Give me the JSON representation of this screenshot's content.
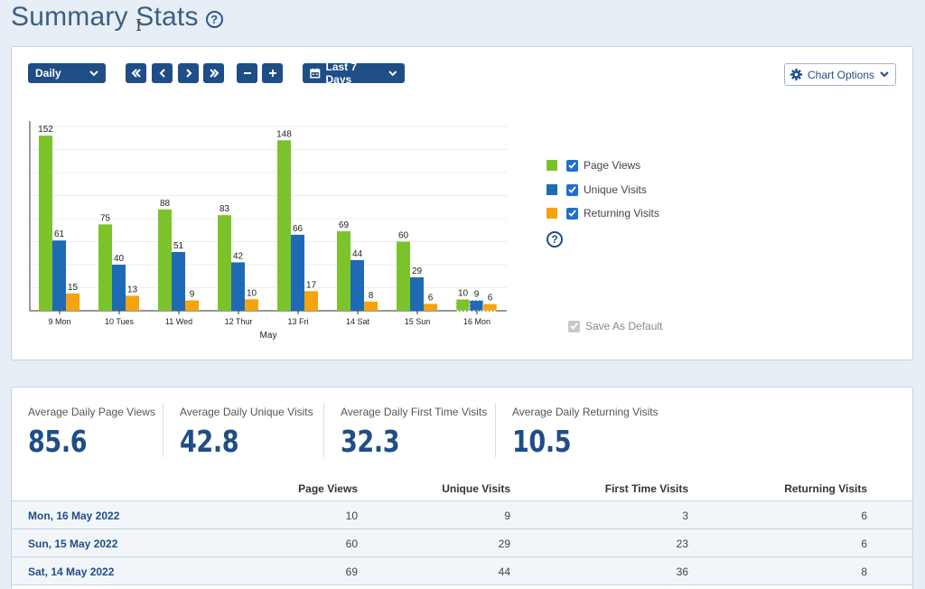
{
  "page": {
    "title": "Summary Stats",
    "help": "?"
  },
  "toolbar": {
    "period": "Daily",
    "date_range": "Last 7 Days",
    "chart_options": "Chart Options"
  },
  "legend": {
    "items": [
      {
        "label": "Page Views",
        "color": "#7cc32b",
        "checked": true
      },
      {
        "label": "Unique Visits",
        "color": "#1e6ab5",
        "checked": true
      },
      {
        "label": "Returning Visits",
        "color": "#f5a30e",
        "checked": true
      }
    ],
    "help": "?",
    "save_default": "Save As Default"
  },
  "chart_data": {
    "type": "bar",
    "xlabel": "May",
    "ylabel": "",
    "ylim": [
      0,
      160
    ],
    "grid": true,
    "categories": [
      "9 Mon",
      "10 Tues",
      "11 Wed",
      "12 Thur",
      "13 Fri",
      "14 Sat",
      "15 Sun",
      "16 Mon"
    ],
    "series": [
      {
        "name": "Page Views",
        "color": "#7cc32b",
        "values": [
          152,
          75,
          88,
          83,
          148,
          69,
          60,
          10
        ]
      },
      {
        "name": "Unique Visits",
        "color": "#1e6ab5",
        "values": [
          61,
          40,
          51,
          42,
          66,
          44,
          29,
          9
        ]
      },
      {
        "name": "Returning Visits",
        "color": "#f5a30e",
        "values": [
          15,
          13,
          9,
          10,
          17,
          8,
          6,
          6
        ]
      }
    ],
    "partial_last_category": true
  },
  "stats": [
    {
      "label": "Average Daily Page Views",
      "value": "85.6"
    },
    {
      "label": "Average Daily Unique Visits",
      "value": "42.8"
    },
    {
      "label": "Average Daily First Time Visits",
      "value": "32.3"
    },
    {
      "label": "Average Daily Returning Visits",
      "value": "10.5"
    }
  ],
  "table": {
    "headers": [
      "Page Views",
      "Unique Visits",
      "First Time Visits",
      "Returning Visits"
    ],
    "rows": [
      {
        "date": "Mon, 16 May 2022",
        "cells": [
          "10",
          "9",
          "3",
          "6"
        ]
      },
      {
        "date": "Sun, 15 May 2022",
        "cells": [
          "60",
          "29",
          "23",
          "6"
        ]
      },
      {
        "date": "Sat, 14 May 2022",
        "cells": [
          "69",
          "44",
          "36",
          "8"
        ]
      }
    ]
  }
}
